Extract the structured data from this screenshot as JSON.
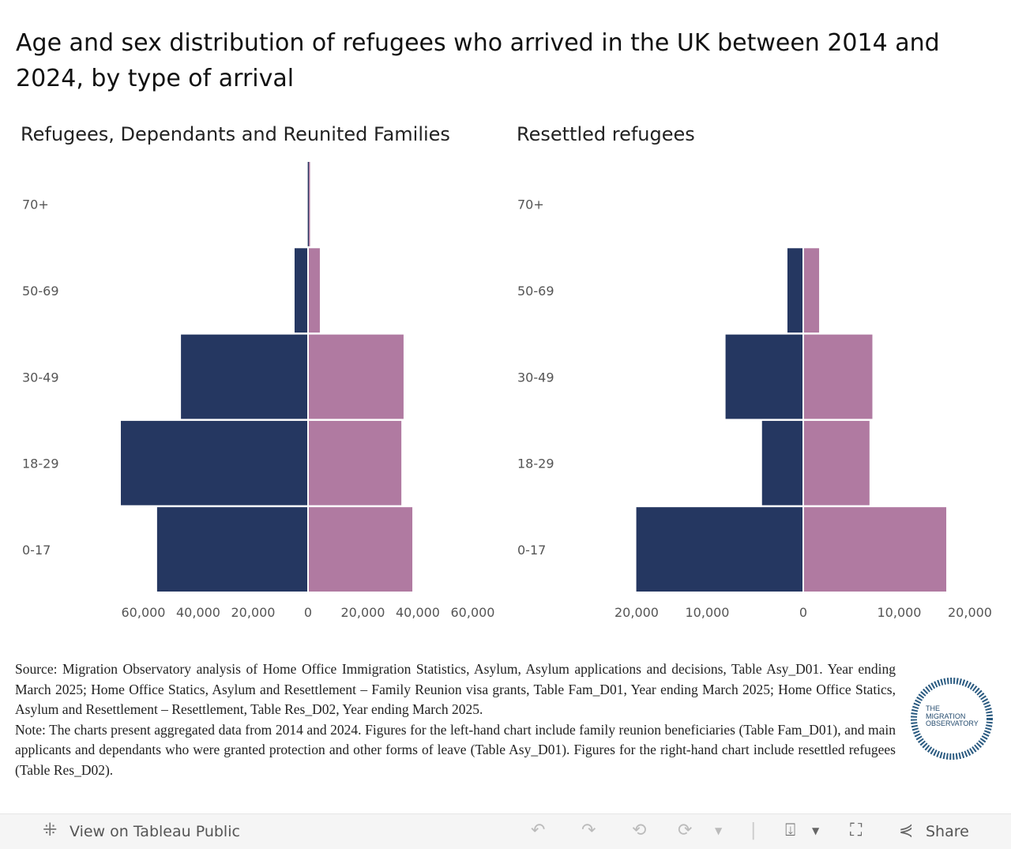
{
  "title": "Age and sex distribution of refugees who arrived in the UK between 2014 and 2024, by type of arrival",
  "colors": {
    "male": "#253761",
    "female": "#b07aa1"
  },
  "chart_data": [
    {
      "type": "bar",
      "orientation": "horizontal-population-pyramid",
      "title": "Refugees, Dependants and Reunited Families",
      "categories": [
        "70+",
        "50-69",
        "30-49",
        "18-29",
        "0-17"
      ],
      "series": [
        {
          "values": [
            100,
            4900,
            46300,
            68200,
            55000
          ]
        },
        {
          "values": [
            500,
            4300,
            34800,
            34000,
            38000
          ]
        }
      ],
      "xlim": [
        -60000,
        60000
      ],
      "ticks": [
        -60000,
        -40000,
        -20000,
        0,
        20000,
        40000,
        60000
      ],
      "tick_labels": [
        "60,000",
        "40,000",
        "20,000",
        "0",
        "20,000",
        "40,000",
        "60,000"
      ],
      "grid": false
    },
    {
      "type": "bar",
      "orientation": "horizontal-population-pyramid",
      "title": "Resettled refugees",
      "categories": [
        "70+",
        "50-69",
        "30-49",
        "18-29",
        "0-17"
      ],
      "series": [
        {
          "values": [
            0,
            1650,
            8100,
            4300,
            17400
          ]
        },
        {
          "values": [
            0,
            1650,
            7200,
            6900,
            14900
          ]
        }
      ],
      "xlim": [
        -20000,
        20000
      ],
      "ticks": [
        -20000,
        -10000,
        0,
        10000,
        20000
      ],
      "tick_labels": [
        "20,000",
        "10,000",
        "0",
        "10,000",
        "20,000"
      ],
      "grid": false
    }
  ],
  "source": "Source: Migration Observatory analysis of Home Office Immigration Statistics, Asylum, Asylum applications and decisions, Table Asy_D01. Year ending March 2025;  Home Office Statics, Asylum and Resettlement – Family Reunion visa grants, Table Fam_D01, Year ending March 2025; Home Office Statics, Asylum and Resettlement – Resettlement, Table Res_D02, Year ending March 2025.",
  "note": "Note: The charts present aggregated data from 2014 and 2024. Figures for the left-hand chart include family reunion beneficiaries (Table Fam_D01), and main applicants and dependants who were granted protection and other forms of leave (Table Asy_D01). Figures for the right-hand chart include resettled refugees (Table Res_D02).",
  "logo_text": "THE MIGRATION OBSERVATORY",
  "footer": {
    "view": "View on Tableau Public",
    "share": "Share"
  }
}
